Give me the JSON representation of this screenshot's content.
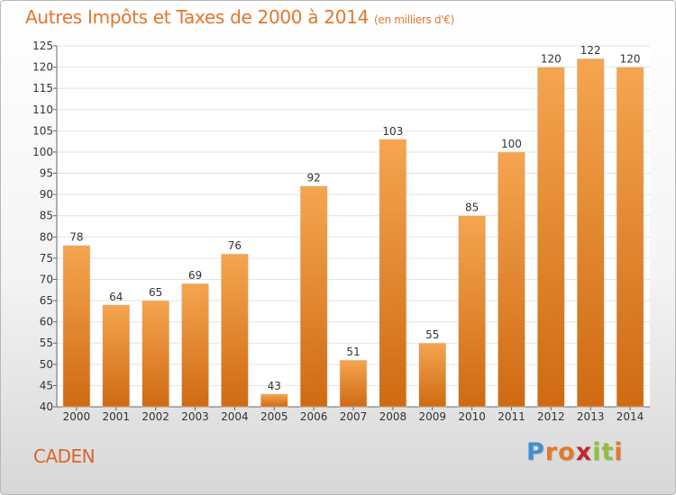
{
  "header": {
    "title": "Autres Impôts et Taxes de 2000 à 2014",
    "unit": "(en milliers d'€)"
  },
  "footer": {
    "commune": "CADEN",
    "logo": {
      "letters": [
        "P",
        "r",
        "o",
        "x",
        "i",
        "t",
        "i"
      ]
    }
  },
  "colors": {
    "title": "#e4752d",
    "bar_light": "#f5a550",
    "bar_dark": "#cf6a12",
    "logo_letters": [
      "#3f8fd4",
      "#e3792b",
      "#e3792b",
      "#c0282d",
      "#8cc13f",
      "#8cc13f",
      "#e3792b"
    ]
  },
  "chart_data": {
    "type": "bar",
    "title": "Autres Impôts et Taxes de 2000 à 2014",
    "subtitle": "(en milliers d'€)",
    "categories": [
      "2000",
      "2001",
      "2002",
      "2003",
      "2004",
      "2005",
      "2006",
      "2007",
      "2008",
      "2009",
      "2010",
      "2011",
      "2012",
      "2013",
      "2014"
    ],
    "values": [
      78,
      64,
      65,
      69,
      76,
      43,
      92,
      51,
      103,
      55,
      85,
      100,
      120,
      122,
      120
    ],
    "ylim": [
      40,
      125
    ],
    "yticks": [
      40,
      45,
      50,
      55,
      60,
      65,
      70,
      75,
      80,
      85,
      90,
      95,
      100,
      105,
      110,
      115,
      120,
      125
    ],
    "grid": true,
    "legend": "none"
  }
}
